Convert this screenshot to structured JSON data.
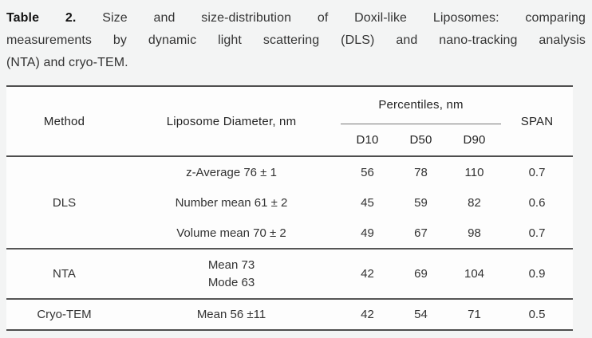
{
  "page": {
    "background_color": "#f3f4f4",
    "table_background_color": "#fdfdfd",
    "rule_color": "#4e4e4e",
    "text_color": "#333333"
  },
  "caption": {
    "label": "Table 2.",
    "line1_rest": "Size and size-distribution of Doxil-like Liposomes: comparing",
    "line2": "measurements by dynamic light scattering (DLS) and nano-tracking analysis",
    "line3": "(NTA) and cryo-TEM."
  },
  "table": {
    "headers": {
      "method": "Method",
      "diameter": "Liposome Diameter, nm",
      "percentiles_group": "Percentiles, nm",
      "d10": "D10",
      "d50": "D50",
      "d90": "D90",
      "span": "SPAN"
    },
    "sections": [
      {
        "method": "DLS",
        "rows": [
          {
            "diameter": "z-Average 76 ± 1",
            "d10": "56",
            "d50": "78",
            "d90": "110",
            "span": "0.7"
          },
          {
            "diameter": "Number mean 61 ± 2",
            "d10": "45",
            "d50": "59",
            "d90": "82",
            "span": "0.6"
          },
          {
            "diameter": "Volume mean 70 ± 2",
            "d10": "49",
            "d50": "67",
            "d90": "98",
            "span": "0.7"
          }
        ]
      },
      {
        "method": "NTA",
        "rows": [
          {
            "diameter_line1": "Mean 73",
            "diameter_line2": "Mode 63",
            "d10": "42",
            "d50": "69",
            "d90": "104",
            "span": "0.9"
          }
        ]
      },
      {
        "method": "Cryo-TEM",
        "rows": [
          {
            "diameter": "Mean 56 ±11",
            "d10": "42",
            "d50": "54",
            "d90": "71",
            "span": "0.5"
          }
        ]
      }
    ]
  }
}
